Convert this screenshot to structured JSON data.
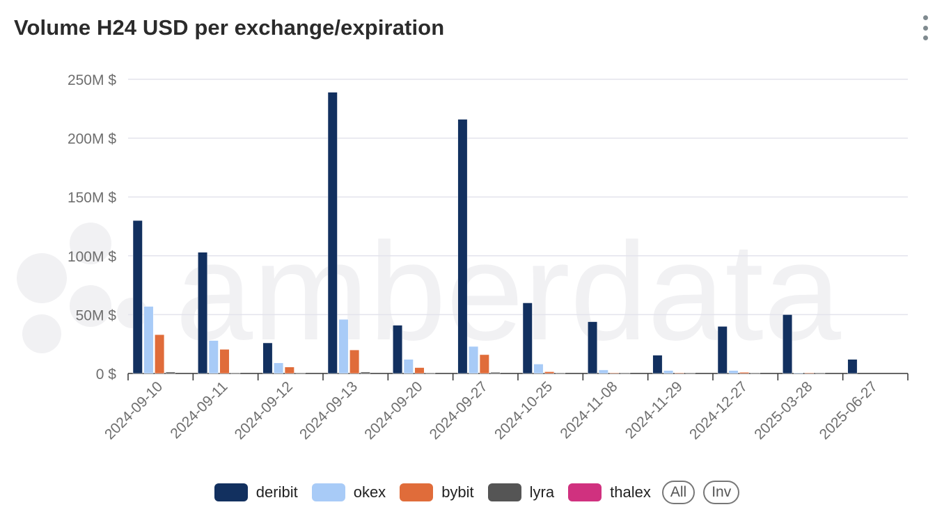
{
  "title": "Volume H24 USD per exchange/expiration",
  "menu_icon": "kebab-menu-icon",
  "watermark": "amberdata",
  "legend_buttons": {
    "all": "All",
    "inv": "Inv"
  },
  "chart_data": {
    "type": "bar",
    "title": "Volume H24 USD per exchange/expiration",
    "xlabel": "",
    "ylabel": "",
    "ylim": [
      0,
      250
    ],
    "yunit": "M $",
    "yticks": [
      "0 $",
      "50M $",
      "100M $",
      "150M $",
      "200M $",
      "250M $"
    ],
    "grid": true,
    "legend_position": "bottom",
    "categories": [
      "2024-09-10",
      "2024-09-11",
      "2024-09-12",
      "2024-09-13",
      "2024-09-20",
      "2024-09-27",
      "2024-10-25",
      "2024-11-08",
      "2024-11-29",
      "2024-12-27",
      "2025-03-28",
      "2025-06-27"
    ],
    "series": [
      {
        "name": "deribit",
        "color": "#12305f",
        "values": [
          130,
          103,
          26,
          239,
          41,
          216,
          60,
          44,
          15.5,
          40,
          50,
          12
        ]
      },
      {
        "name": "okex",
        "color": "#a8cbf7",
        "values": [
          57,
          28,
          9,
          46,
          12,
          23,
          8,
          3,
          2.5,
          2.5,
          0.5,
          0
        ]
      },
      {
        "name": "bybit",
        "color": "#e06c3a",
        "values": [
          33,
          20.5,
          5.5,
          20,
          5,
          16,
          1.5,
          0.3,
          0.5,
          1,
          0.2,
          0
        ]
      },
      {
        "name": "lyra",
        "color": "#555555",
        "values": [
          1.2,
          0.3,
          0.2,
          1.2,
          0.2,
          1,
          0.2,
          0.1,
          0.5,
          0.1,
          0.1,
          0
        ]
      },
      {
        "name": "thalex",
        "color": "#d0317f",
        "values": [
          0,
          0,
          0,
          0,
          0,
          0,
          0,
          0,
          0,
          0,
          0,
          0
        ]
      }
    ]
  }
}
